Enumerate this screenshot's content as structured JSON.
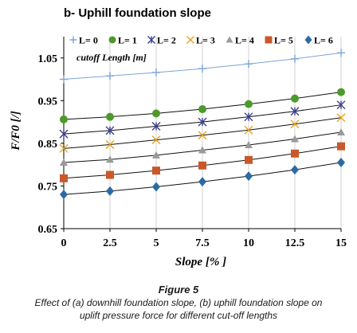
{
  "panel_title": "b- Uphill foundation slope",
  "figure": {
    "label": "Figure 5",
    "caption_line1": "Effect of (a) downhill foundation slope, (b) uphill foundation slope on",
    "caption_line2": "uplift pressure force for different cut-off lengths"
  },
  "chart_data": {
    "type": "line",
    "title": "b- Uphill foundation slope",
    "xlabel": "Slope [% ]",
    "ylabel": "F/F0 [/]",
    "x": [
      0,
      2.5,
      5,
      7.5,
      10,
      12.5,
      15
    ],
    "xticks": [
      "0",
      "2.5",
      "5",
      "7.5",
      "10",
      "12.5",
      "15"
    ],
    "xlim": [
      0,
      15
    ],
    "ylim": [
      0.65,
      1.1
    ],
    "yticks": [
      "0.65",
      "0.75",
      "0.85",
      "0.95",
      "1.05"
    ],
    "grid": "vertical",
    "legend_position": "top",
    "legend_note": "cutoff Length [m]",
    "series": [
      {
        "name": "L= 0",
        "color": "#7ba3d8",
        "marker": "plus",
        "values": [
          1.0,
          1.008,
          1.016,
          1.025,
          1.036,
          1.048,
          1.062
        ]
      },
      {
        "name": "L= 1",
        "color": "#4c9a2a",
        "marker": "circle",
        "values": [
          0.906,
          0.912,
          0.92,
          0.93,
          0.942,
          0.955,
          0.97
        ]
      },
      {
        "name": "L= 2",
        "color": "#3b3f8f",
        "marker": "asterisk",
        "values": [
          0.872,
          0.88,
          0.89,
          0.9,
          0.912,
          0.925,
          0.94
        ]
      },
      {
        "name": "L= 3",
        "color": "#e8a317",
        "marker": "x",
        "values": [
          0.838,
          0.847,
          0.858,
          0.869,
          0.881,
          0.895,
          0.91
        ]
      },
      {
        "name": "L= 4",
        "color": "#9a9a9a",
        "marker": "triangle",
        "values": [
          0.805,
          0.812,
          0.822,
          0.834,
          0.846,
          0.86,
          0.876
        ]
      },
      {
        "name": "L= 5",
        "color": "#c9582b",
        "marker": "square",
        "values": [
          0.768,
          0.776,
          0.786,
          0.798,
          0.811,
          0.826,
          0.843
        ]
      },
      {
        "name": "L= 6",
        "color": "#2b6aa3",
        "marker": "diamond",
        "values": [
          0.73,
          0.738,
          0.748,
          0.76,
          0.773,
          0.788,
          0.805
        ]
      }
    ]
  }
}
